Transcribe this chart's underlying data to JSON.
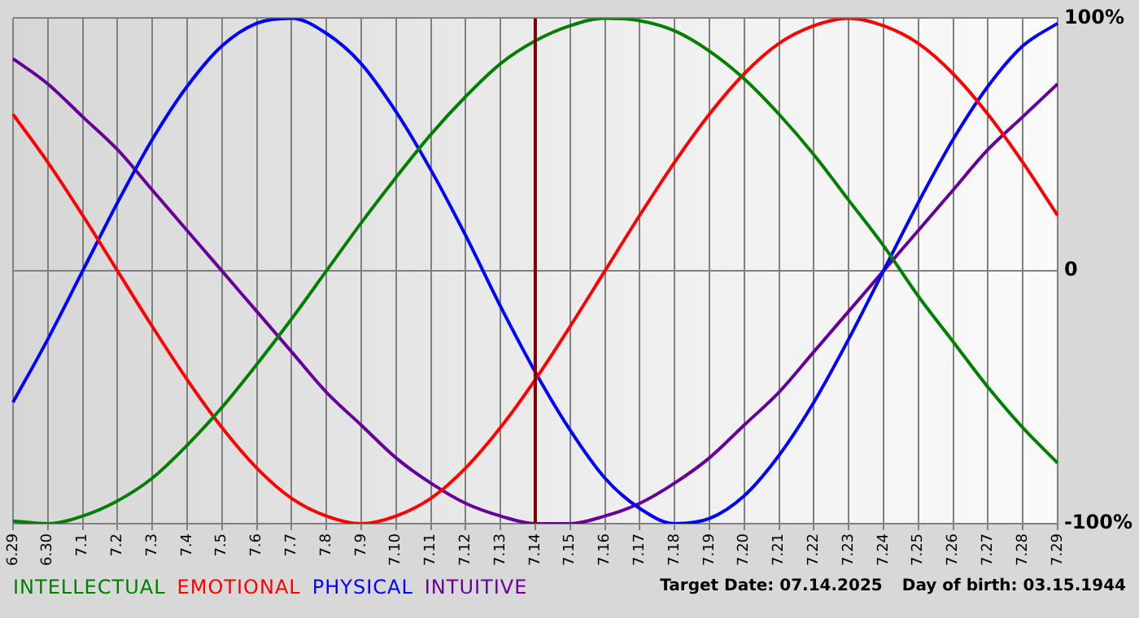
{
  "chart_data": {
    "type": "line",
    "categories": [
      "6.29",
      "6.30",
      "7.1",
      "7.2",
      "7.3",
      "7.4",
      "7.5",
      "7.6",
      "7.7",
      "7.8",
      "7.9",
      "7.10",
      "7.11",
      "7.12",
      "7.13",
      "7.14",
      "7.15",
      "7.16",
      "7.17",
      "7.18",
      "7.19",
      "7.20",
      "7.21",
      "7.22",
      "7.23",
      "7.24",
      "7.25",
      "7.26",
      "7.27",
      "7.28",
      "7.29"
    ],
    "series": [
      {
        "name": "INTELLECTUAL",
        "color": "#008000",
        "values": [
          -99,
          -100,
          -97,
          -91,
          -82,
          -69,
          -54,
          -37,
          -19,
          0,
          19,
          37,
          54,
          69,
          82,
          91,
          97,
          100,
          99,
          95,
          87,
          76,
          62,
          46,
          28,
          10,
          -10,
          -28,
          -46,
          -62,
          -76
        ]
      },
      {
        "name": "EMOTIONAL",
        "color": "#ff0000",
        "values": [
          62,
          43,
          22,
          0,
          -22,
          -43,
          -62,
          -78,
          -90,
          -97,
          -100,
          -97,
          -90,
          -78,
          -62,
          -43,
          -22,
          0,
          22,
          43,
          62,
          78,
          90,
          97,
          100,
          97,
          90,
          78,
          62,
          43,
          22
        ]
      },
      {
        "name": "PHYSICAL",
        "color": "#0000ff",
        "values": [
          -52,
          -27,
          0,
          27,
          52,
          73,
          89,
          98,
          100,
          94,
          82,
          63,
          40,
          14,
          -14,
          -40,
          -63,
          -82,
          -94,
          -100,
          -98,
          -89,
          -73,
          -52,
          -27,
          0,
          27,
          52,
          73,
          89,
          98
        ]
      },
      {
        "name": "INTUITIVE",
        "color": "#660099",
        "values": [
          84,
          74,
          61,
          48,
          32,
          16,
          0,
          -16,
          -32,
          -48,
          -61,
          -74,
          -84,
          -92,
          -97,
          -100,
          -100,
          -97,
          -92,
          -84,
          -74,
          -61,
          -48,
          -32,
          -16,
          0,
          16,
          32,
          48,
          61,
          74
        ]
      }
    ],
    "ylim": [
      -100,
      100
    ],
    "yticks": [
      {
        "value": 100,
        "label": "100%"
      },
      0,
      {
        "value": -100,
        "label": "-100%"
      }
    ],
    "grid": true,
    "legend": "bottom left",
    "marker": "none",
    "line_style": "solid",
    "ref_lines": [
      {
        "axis": "x",
        "value": "7.14",
        "color": "#800000"
      }
    ],
    "annotations": [
      "Target Date: 07.14.2025",
      "Day of birth: 03.15.1944"
    ]
  }
}
